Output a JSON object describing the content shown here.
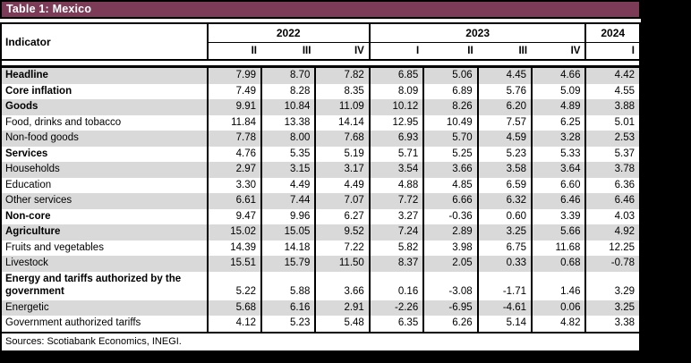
{
  "title": "Table 1: Mexico",
  "source_note": "Sources: Scotiabank Economics, INEGI.",
  "colors": {
    "title_bar_bg": "#7C3B57",
    "title_text": "#FFFFFF",
    "row_stripe": "#D9D9D9",
    "border": "#000000",
    "page_background": "#000000"
  },
  "chart_data": {
    "type": "table",
    "title": "Table 1: Mexico",
    "indicator_header": "Indicator",
    "year_groups": [
      {
        "label": "2022",
        "quarters": [
          "II",
          "III",
          "IV"
        ]
      },
      {
        "label": "2023",
        "quarters": [
          "I",
          "II",
          "III",
          "IV"
        ]
      },
      {
        "label": "2024",
        "quarters": [
          "I"
        ]
      }
    ],
    "column_keys": [
      "2022-II",
      "2022-III",
      "2022-IV",
      "2023-I",
      "2023-II",
      "2023-III",
      "2023-IV",
      "2024-I"
    ],
    "rows": [
      {
        "label": "Headline",
        "bold": true,
        "values": [
          "7.99",
          "8.70",
          "7.82",
          "6.85",
          "5.06",
          "4.45",
          "4.66",
          "4.42"
        ]
      },
      {
        "label": "Core inflation",
        "bold": true,
        "values": [
          "7.49",
          "8.28",
          "8.35",
          "8.09",
          "6.89",
          "5.76",
          "5.09",
          "4.55"
        ]
      },
      {
        "label": "Goods",
        "bold": true,
        "values": [
          "9.91",
          "10.84",
          "11.09",
          "10.12",
          "8.26",
          "6.20",
          "4.89",
          "3.88"
        ]
      },
      {
        "label": "Food, drinks and tobacco",
        "bold": false,
        "values": [
          "11.84",
          "13.38",
          "14.14",
          "12.95",
          "10.49",
          "7.57",
          "6.25",
          "5.01"
        ]
      },
      {
        "label": "Non-food goods",
        "bold": false,
        "values": [
          "7.78",
          "8.00",
          "7.68",
          "6.93",
          "5.70",
          "4.59",
          "3.28",
          "2.53"
        ]
      },
      {
        "label": "Services",
        "bold": true,
        "values": [
          "4.76",
          "5.35",
          "5.19",
          "5.71",
          "5.25",
          "5.23",
          "5.33",
          "5.37"
        ]
      },
      {
        "label": "Households",
        "bold": false,
        "values": [
          "2.97",
          "3.15",
          "3.17",
          "3.54",
          "3.66",
          "3.58",
          "3.64",
          "3.78"
        ]
      },
      {
        "label": "Education",
        "bold": false,
        "values": [
          "3.30",
          "4.49",
          "4.49",
          "4.88",
          "4.85",
          "6.59",
          "6.60",
          "6.36"
        ]
      },
      {
        "label": "Other services",
        "bold": false,
        "values": [
          "6.61",
          "7.44",
          "7.07",
          "7.72",
          "6.66",
          "6.32",
          "6.46",
          "6.46"
        ]
      },
      {
        "label": "Non-core",
        "bold": true,
        "values": [
          "9.47",
          "9.96",
          "6.27",
          "3.27",
          "-0.36",
          "0.60",
          "3.39",
          "4.03"
        ]
      },
      {
        "label": "Agriculture",
        "bold": true,
        "values": [
          "15.02",
          "15.05",
          "9.52",
          "7.24",
          "2.89",
          "3.25",
          "5.66",
          "4.92"
        ]
      },
      {
        "label": "Fruits and vegetables",
        "bold": false,
        "values": [
          "14.39",
          "14.18",
          "7.22",
          "5.82",
          "3.98",
          "6.75",
          "11.68",
          "12.25"
        ]
      },
      {
        "label": "Livestock",
        "bold": false,
        "values": [
          "15.51",
          "15.79",
          "11.50",
          "8.37",
          "2.05",
          "0.33",
          "0.68",
          "-0.78"
        ]
      },
      {
        "label": "Energy and tariffs authorized by the government",
        "bold": true,
        "values": [
          "5.22",
          "5.88",
          "3.66",
          "0.16",
          "-3.08",
          "-1.71",
          "1.46",
          "3.29"
        ]
      },
      {
        "label": "Energetic",
        "bold": false,
        "values": [
          "5.68",
          "6.16",
          "2.91",
          "-2.26",
          "-6.95",
          "-4.61",
          "0.06",
          "3.25"
        ]
      },
      {
        "label": "Government authorized tariffs",
        "bold": false,
        "values": [
          "4.12",
          "5.23",
          "5.48",
          "6.35",
          "6.26",
          "5.14",
          "4.82",
          "3.38"
        ]
      }
    ]
  }
}
